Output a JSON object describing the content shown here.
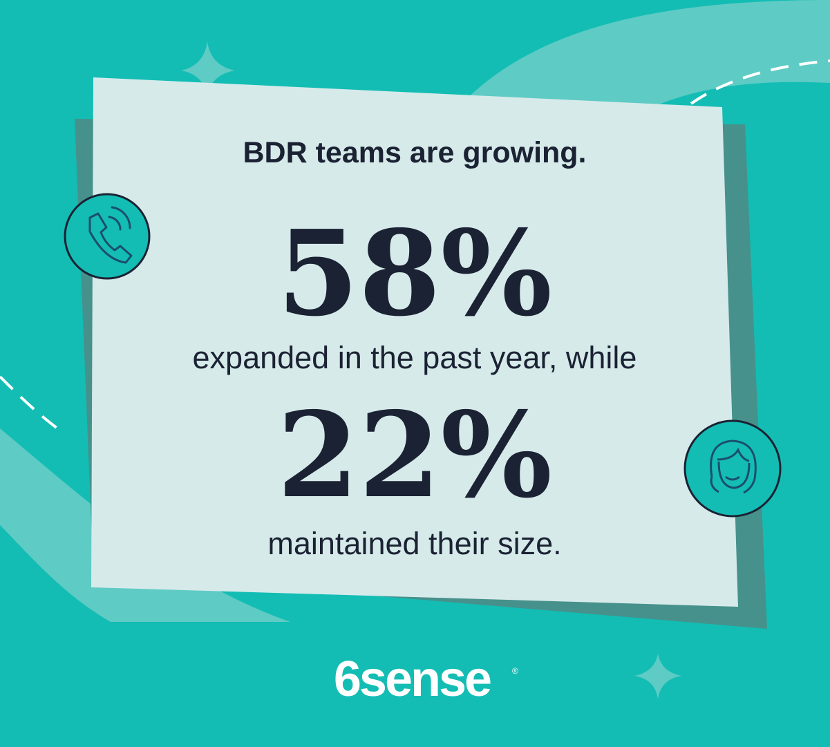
{
  "headline": "BDR teams are growing.",
  "stats": [
    {
      "figure": "58%",
      "caption": "expanded in the past year, while"
    },
    {
      "figure": "22%",
      "caption": "maintained their size."
    }
  ],
  "logo": {
    "text": "6sense",
    "mark": "®"
  }
}
